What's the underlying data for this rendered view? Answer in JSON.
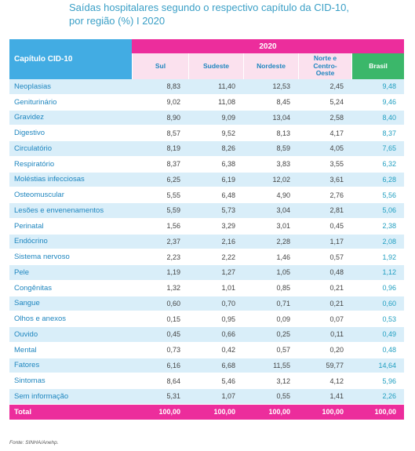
{
  "title": [
    "Saídas hospitalares segundo o respectivo capítulo da CID-10,",
    "por região (%) I  2020"
  ],
  "table": {
    "corner": "Capítulo CID-10",
    "year": "2020",
    "columns": [
      "Sul",
      "Sudeste",
      "Nordeste",
      "Norte e Centro-Oeste",
      "Brasil"
    ],
    "rows": [
      [
        "Neoplasias",
        "8,83",
        "11,40",
        "12,53",
        "2,45",
        "9,48"
      ],
      [
        "Geniturinário",
        "9,02",
        "11,08",
        "8,45",
        "5,24",
        "9,46"
      ],
      [
        "Gravidez",
        "8,90",
        "9,09",
        "13,04",
        "2,58",
        "8,40"
      ],
      [
        "Digestivo",
        "8,57",
        "9,52",
        "8,13",
        "4,17",
        "8,37"
      ],
      [
        "Circulatório",
        "8,19",
        "8,26",
        "8,59",
        "4,05",
        "7,65"
      ],
      [
        "Respiratório",
        "8,37",
        "6,38",
        "3,83",
        "3,55",
        "6,32"
      ],
      [
        "Moléstias infecciosas",
        "6,25",
        "6,19",
        "12,02",
        "3,61",
        "6,28"
      ],
      [
        "Osteomuscular",
        "5,55",
        "6,48",
        "4,90",
        "2,76",
        "5,56"
      ],
      [
        "Lesões e envenenamentos",
        "5,59",
        "5,73",
        "3,04",
        "2,81",
        "5,06"
      ],
      [
        "Perinatal",
        "1,56",
        "3,29",
        "3,01",
        "0,45",
        "2,38"
      ],
      [
        "Endócrino",
        "2,37",
        "2,16",
        "2,28",
        "1,17",
        "2,08"
      ],
      [
        "Sistema nervoso",
        "2,23",
        "2,22",
        "1,46",
        "0,57",
        "1,92"
      ],
      [
        "Pele",
        "1,19",
        "1,27",
        "1,05",
        "0,48",
        "1,12"
      ],
      [
        "Congênitas",
        "1,32",
        "1,01",
        "0,85",
        "0,21",
        "0,96"
      ],
      [
        "Sangue",
        "0,60",
        "0,70",
        "0,71",
        "0,21",
        "0,60"
      ],
      [
        "Olhos e anexos",
        "0,15",
        "0,95",
        "0,09",
        "0,07",
        "0,53"
      ],
      [
        "Ouvido",
        "0,45",
        "0,66",
        "0,25",
        "0,11",
        "0,49"
      ],
      [
        "Mental",
        "0,73",
        "0,42",
        "0,57",
        "0,20",
        "0,48"
      ],
      [
        "Fatores",
        "6,16",
        "6,68",
        "11,55",
        "59,77",
        "14,64"
      ],
      [
        "Sintomas",
        "8,64",
        "5,46",
        "3,12",
        "4,12",
        "5,96"
      ],
      [
        "Sem informação",
        "5,31",
        "1,07",
        "0,55",
        "1,41",
        "2,26"
      ]
    ],
    "total": [
      "Total",
      "100,00",
      "100,00",
      "100,00",
      "100,00",
      "100,00"
    ]
  },
  "source": "Fonte: SINHA/Anehp."
}
